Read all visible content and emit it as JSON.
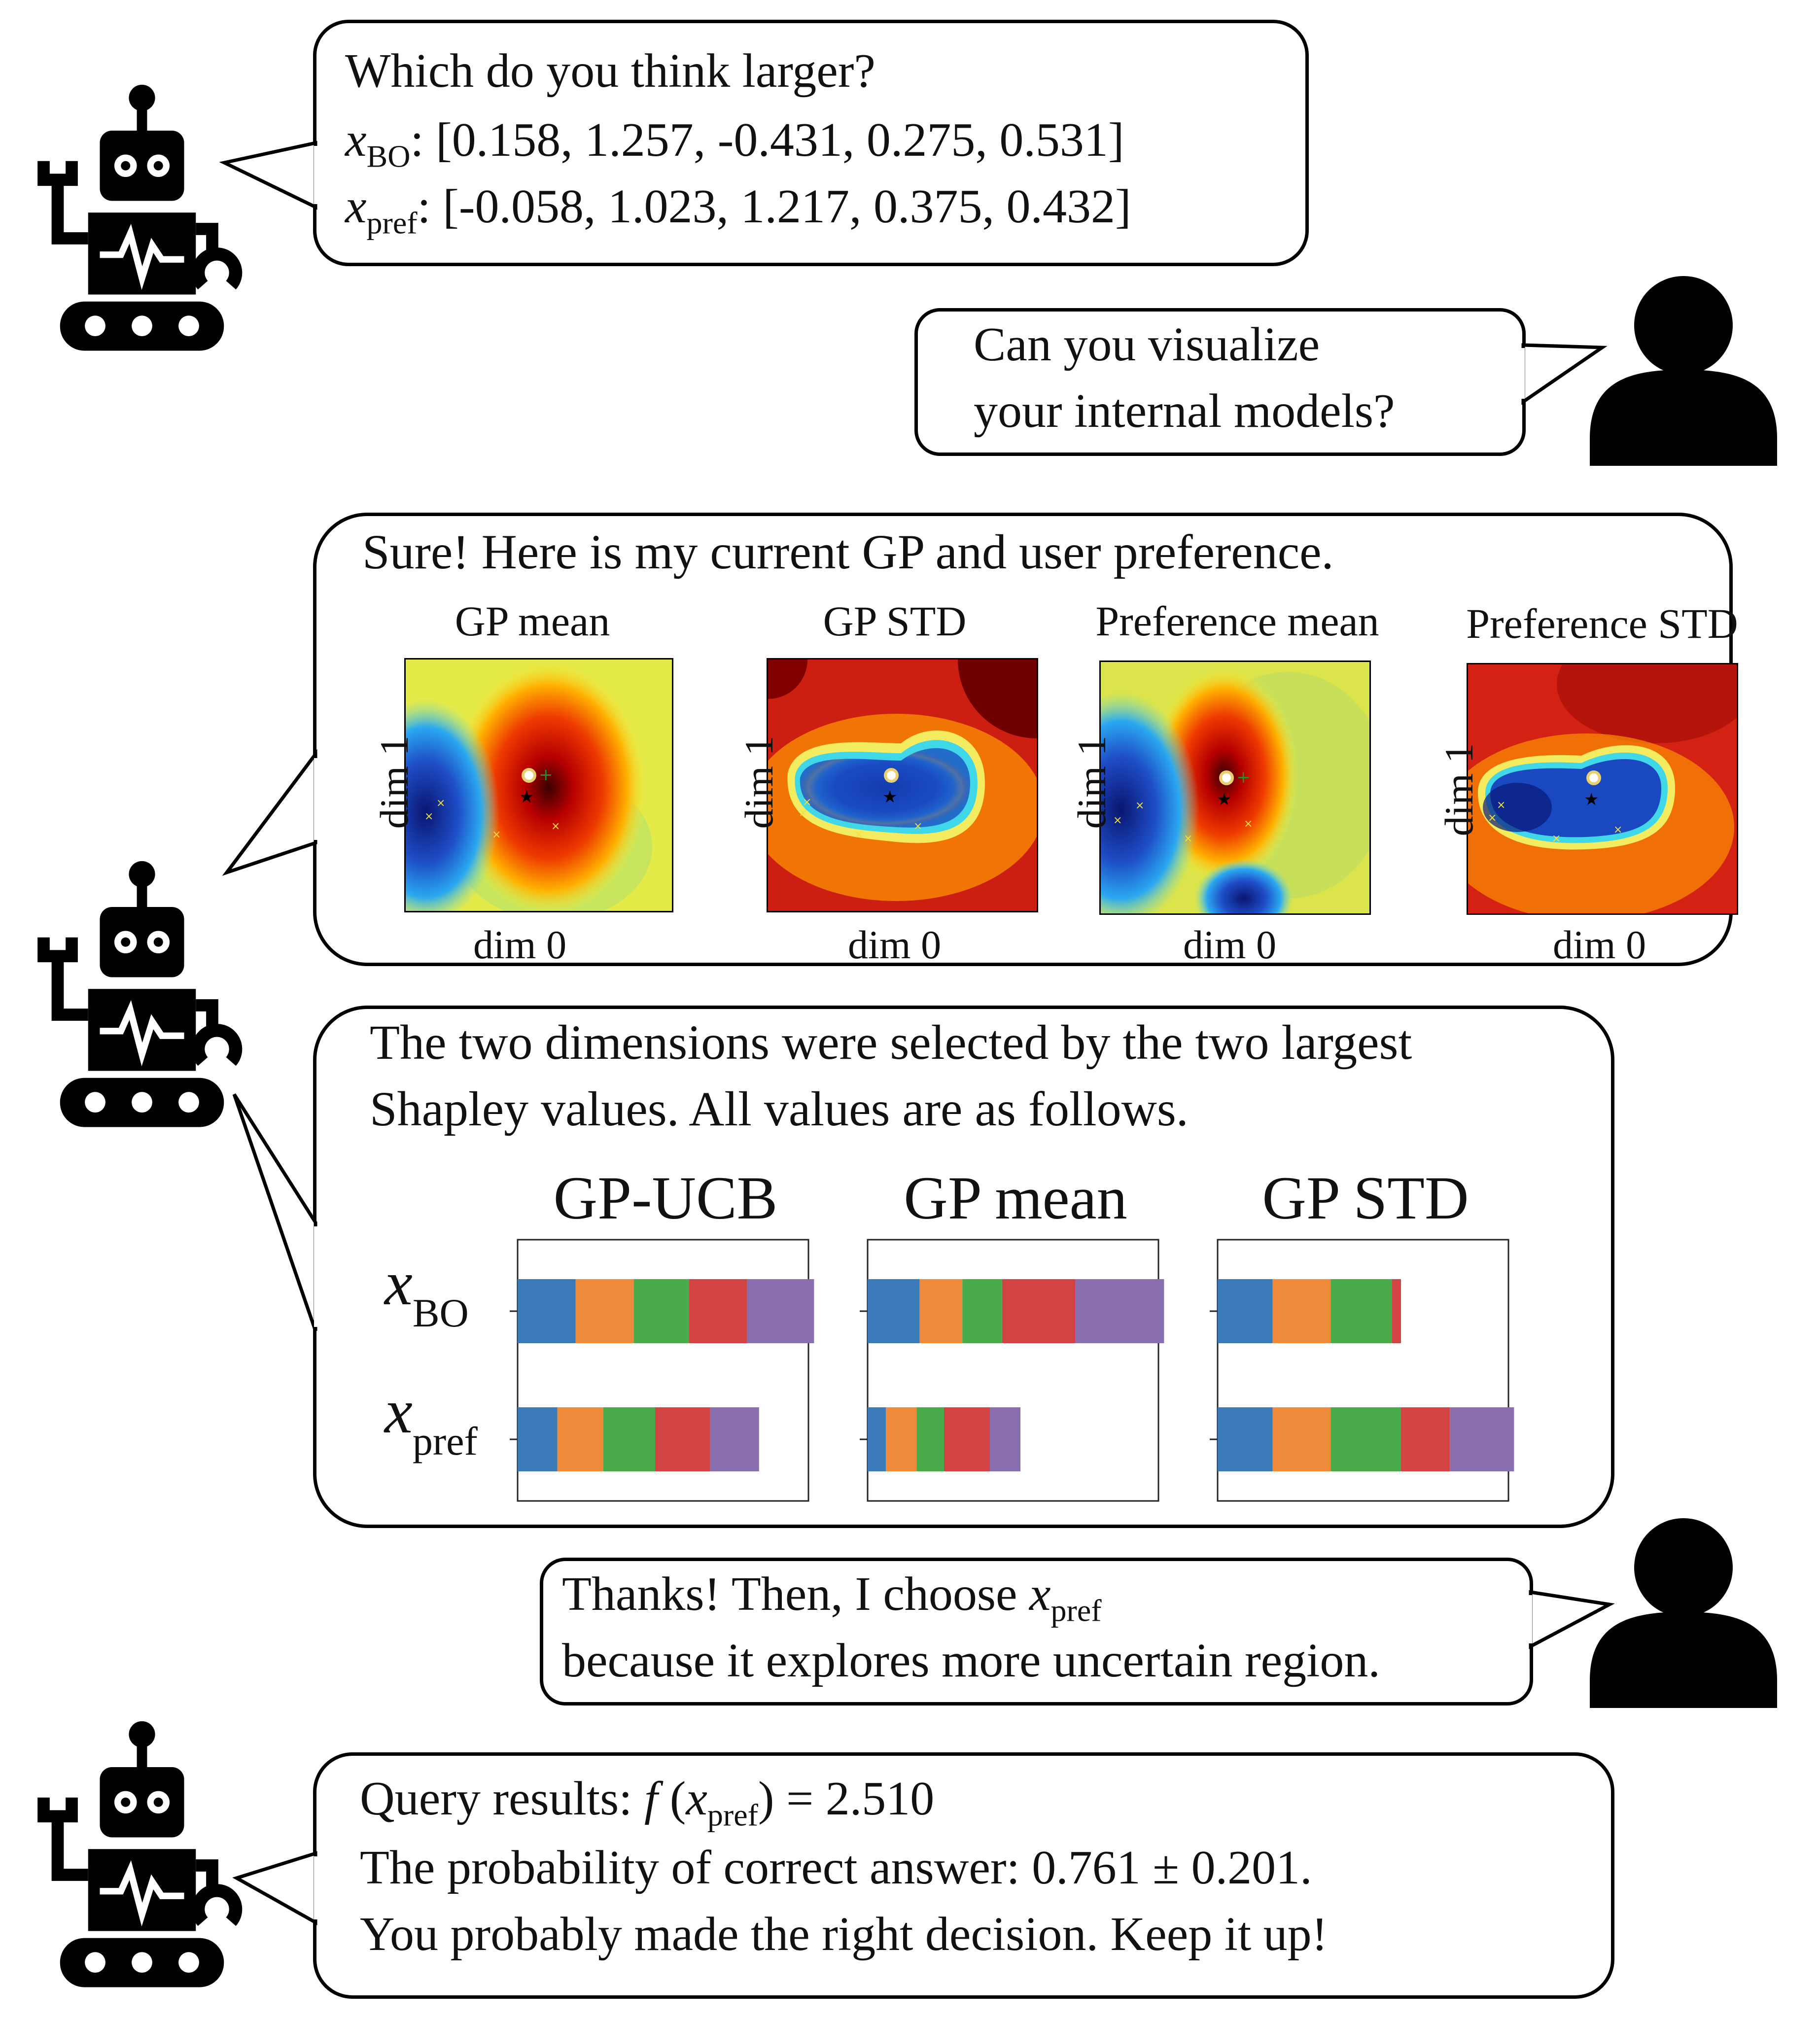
{
  "colors": {
    "bar_segments": [
      "#3a7ab8",
      "#ee8a3a",
      "#4aab4a",
      "#d24444",
      "#8a6fb0"
    ]
  },
  "msg1": {
    "question": "Which do you think larger?",
    "bo_label": "x",
    "bo_sub": "BO",
    "bo_values": ": [0.158, 1.257, -0.431, 0.275, 0.531]",
    "pref_label": "x",
    "pref_sub": "pref",
    "pref_values": ": [-0.058, 1.023, 1.217, 0.375, 0.432]"
  },
  "msg2": {
    "line1": "Can you visualize",
    "line2": "your internal models?"
  },
  "msg3": {
    "text": "Sure! Here is my current GP and user preference.",
    "panels": [
      {
        "title": "GP mean",
        "xlabel": "dim 0",
        "ylabel": "dim 1"
      },
      {
        "title": "GP STD",
        "xlabel": "dim 0",
        "ylabel": "dim 1"
      },
      {
        "title": "Preference mean",
        "xlabel": "dim 0",
        "ylabel": "dim 1"
      },
      {
        "title": "Preference STD",
        "xlabel": "dim 0",
        "ylabel": "dim 1"
      }
    ]
  },
  "msg4": {
    "line1": "The two dimensions were selected by the two largest",
    "line2": "Shapley values. All values are as follows."
  },
  "msg5": {
    "line1_pre": "Thanks! Then, I choose ",
    "line1_x": "x",
    "line1_sub": "pref",
    "line2": "because it explores more uncertain region."
  },
  "msg6": {
    "line1_pre": "Query results: ",
    "line1_f": "f",
    "line1_open": " (",
    "line1_x": "x",
    "line1_sub": "pref",
    "line1_post": ") = 2.510",
    "line2": "The probability of correct answer: 0.761 ± 0.201.",
    "line3": "You probably made the right decision. Keep it up!"
  },
  "chart_data": [
    {
      "type": "bar",
      "title": "GP-UCB",
      "stacked": true,
      "categories": [
        "x_BO",
        "x_pref"
      ],
      "category_labels": [
        {
          "main": "x",
          "sub": "BO"
        },
        {
          "main": "x",
          "sub": "pref"
        }
      ],
      "series": [
        {
          "values": [
            0.19,
            0.13
          ]
        },
        {
          "values": [
            0.19,
            0.15
          ]
        },
        {
          "values": [
            0.18,
            0.17
          ]
        },
        {
          "values": [
            0.19,
            0.18
          ]
        },
        {
          "values": [
            0.22,
            0.16
          ]
        }
      ]
    },
    {
      "type": "bar",
      "title": "GP mean",
      "stacked": true,
      "categories": [
        "x_BO",
        "x_pref"
      ],
      "series": [
        {
          "values": [
            0.17,
            0.06
          ]
        },
        {
          "values": [
            0.14,
            0.1
          ]
        },
        {
          "values": [
            0.13,
            0.09
          ]
        },
        {
          "values": [
            0.24,
            0.15
          ]
        },
        {
          "values": [
            0.29,
            0.1
          ]
        }
      ]
    },
    {
      "type": "bar",
      "title": "GP STD",
      "stacked": true,
      "categories": [
        "x_BO",
        "x_pref"
      ],
      "series": [
        {
          "values": [
            0.18,
            0.18
          ]
        },
        {
          "values": [
            0.19,
            0.19
          ]
        },
        {
          "values": [
            0.2,
            0.23
          ]
        },
        {
          "values": [
            0.03,
            0.16
          ]
        },
        {
          "values": [
            0.0,
            0.21
          ]
        }
      ]
    }
  ]
}
